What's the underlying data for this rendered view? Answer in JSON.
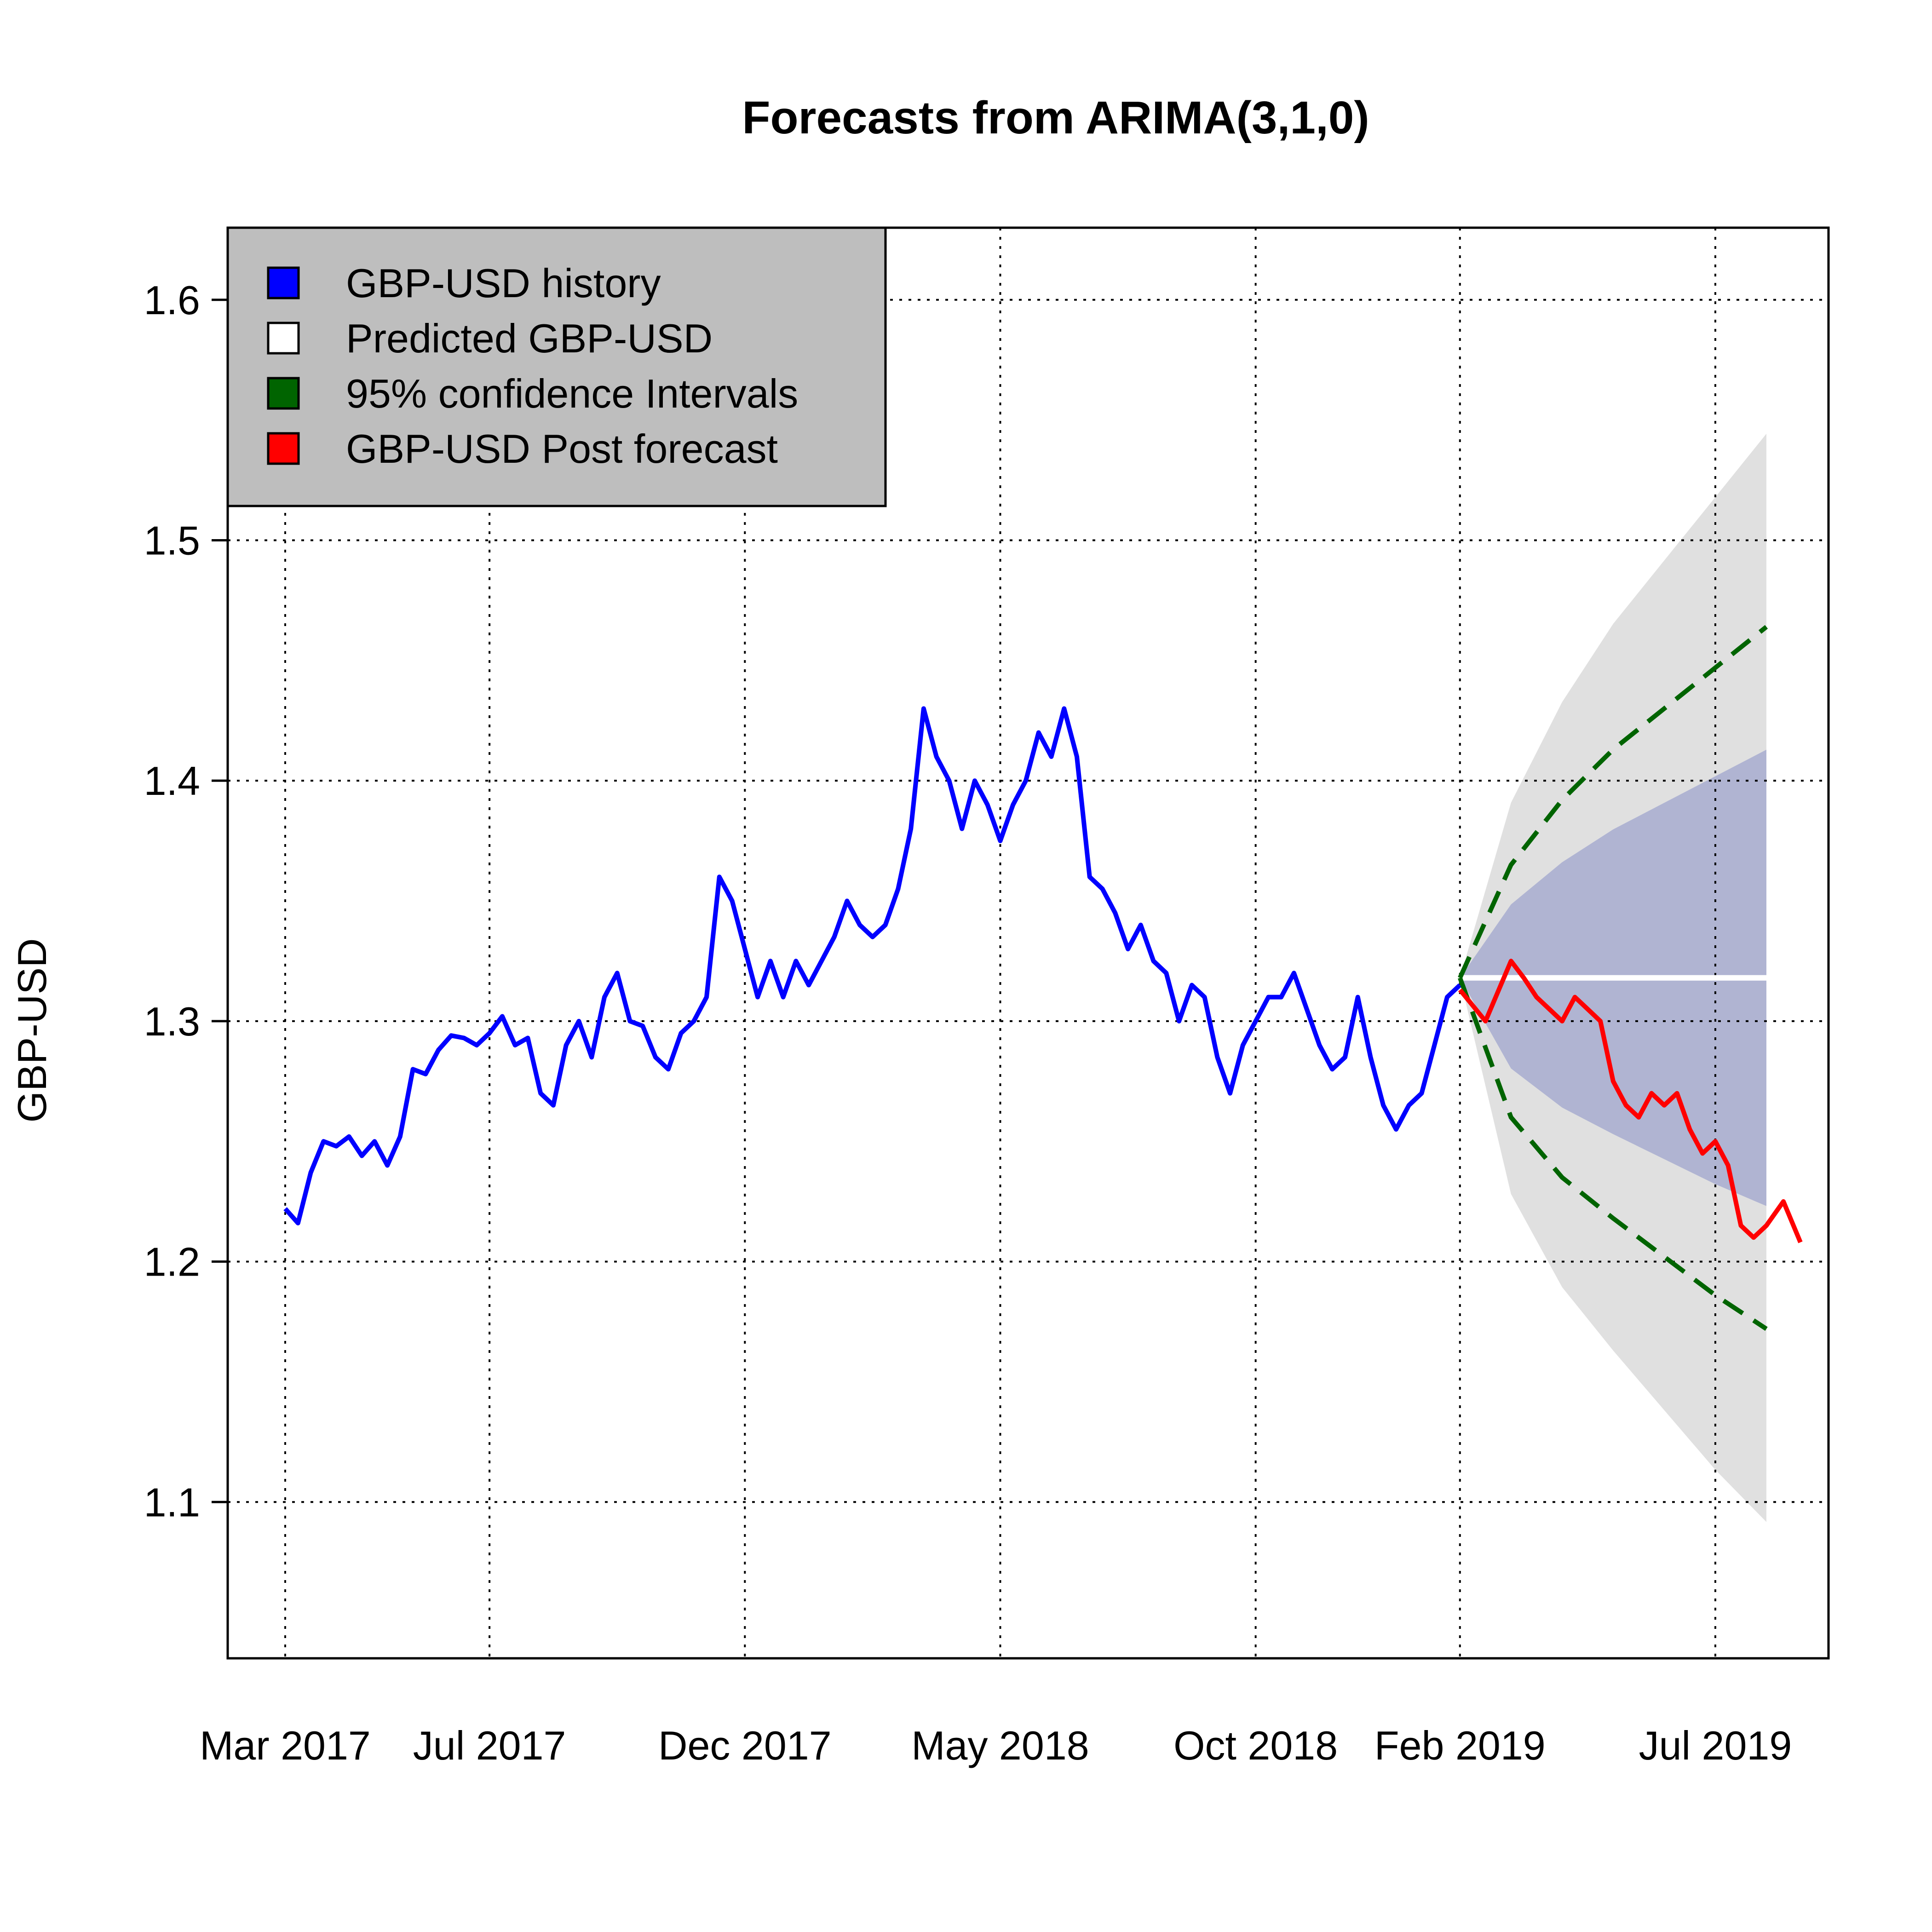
{
  "chart_data": {
    "type": "line",
    "title": "Forecasts from ARIMA(3,1,0)",
    "xlabel": "",
    "ylabel": "GBP-USD",
    "ylim": [
      1.035,
      1.63
    ],
    "y_ticks": [
      "1.1",
      "1.2",
      "1.3",
      "1.4",
      "1.5",
      "1.6"
    ],
    "x_ticks": [
      "Mar 2017",
      "Jul 2017",
      "Dec 2017",
      "May 2018",
      "Oct 2018",
      "Feb 2019",
      "Jul 2019"
    ],
    "grid": true,
    "legend_position": "top-left",
    "legend": [
      {
        "label": "GBP-USD  history",
        "color": "#0000ff"
      },
      {
        "label": "Predicted  GBP-USD",
        "color": "#ffffff"
      },
      {
        "label": "95% confidence Intervals",
        "color": "#006400"
      },
      {
        "label": "GBP-USD  Post forecast",
        "color": "#ff0000"
      }
    ],
    "series": [
      {
        "name": "GBP-USD  history",
        "color": "#0000ff",
        "x": [
          "Mar 2017",
          "Mar 2017",
          "Mar 2017",
          "Mar 2017",
          "Apr 2017",
          "Apr 2017",
          "Apr 2017",
          "Apr 2017",
          "May 2017",
          "May 2017",
          "May 2017",
          "May 2017",
          "Jun 2017",
          "Jun 2017",
          "Jun 2017",
          "Jun 2017",
          "Jul 2017",
          "Jul 2017",
          "Jul 2017",
          "Jul 2017",
          "Aug 2017",
          "Aug 2017",
          "Aug 2017",
          "Aug 2017",
          "Sep 2017",
          "Sep 2017",
          "Sep 2017",
          "Sep 2017",
          "Oct 2017",
          "Oct 2017",
          "Oct 2017",
          "Oct 2017",
          "Nov 2017",
          "Nov 2017",
          "Nov 2017",
          "Nov 2017",
          "Dec 2017",
          "Dec 2017",
          "Dec 2017",
          "Dec 2017",
          "Jan 2018",
          "Jan 2018",
          "Jan 2018",
          "Jan 2018",
          "Feb 2018",
          "Feb 2018",
          "Feb 2018",
          "Feb 2018",
          "Mar 2018",
          "Mar 2018",
          "Mar 2018",
          "Mar 2018",
          "Apr 2018",
          "Apr 2018",
          "Apr 2018",
          "Apr 2018",
          "May 2018",
          "May 2018",
          "May 2018",
          "May 2018",
          "Jun 2018",
          "Jun 2018",
          "Jun 2018",
          "Jun 2018",
          "Jul 2018",
          "Jul 2018",
          "Jul 2018",
          "Jul 2018",
          "Aug 2018",
          "Aug 2018",
          "Aug 2018",
          "Aug 2018",
          "Sep 2018",
          "Sep 2018",
          "Sep 2018",
          "Sep 2018",
          "Oct 2018",
          "Oct 2018",
          "Oct 2018",
          "Oct 2018",
          "Nov 2018",
          "Nov 2018",
          "Nov 2018",
          "Nov 2018",
          "Dec 2018",
          "Dec 2018",
          "Dec 2018",
          "Dec 2018",
          "Jan 2019",
          "Jan 2019",
          "Jan 2019",
          "Jan 2019",
          "Feb 2019"
        ],
        "values": [
          1.222,
          1.216,
          1.237,
          1.25,
          1.248,
          1.252,
          1.244,
          1.25,
          1.24,
          1.252,
          1.28,
          1.278,
          1.288,
          1.294,
          1.293,
          1.29,
          1.295,
          1.302,
          1.29,
          1.293,
          1.27,
          1.265,
          1.29,
          1.3,
          1.285,
          1.31,
          1.32,
          1.3,
          1.298,
          1.285,
          1.28,
          1.295,
          1.3,
          1.31,
          1.36,
          1.35,
          1.33,
          1.31,
          1.325,
          1.31,
          1.325,
          1.315,
          1.325,
          1.335,
          1.35,
          1.34,
          1.335,
          1.34,
          1.355,
          1.38,
          1.43,
          1.41,
          1.4,
          1.38,
          1.4,
          1.39,
          1.375,
          1.39,
          1.4,
          1.42,
          1.41,
          1.43,
          1.41,
          1.36,
          1.355,
          1.345,
          1.33,
          1.34,
          1.325,
          1.32,
          1.3,
          1.315,
          1.31,
          1.285,
          1.27,
          1.29,
          1.3,
          1.31,
          1.31,
          1.32,
          1.305,
          1.29,
          1.28,
          1.285,
          1.31,
          1.285,
          1.265,
          1.255,
          1.265,
          1.27,
          1.29,
          1.31,
          1.315
        ]
      },
      {
        "name": "Predicted  GBP-USD",
        "color": "#ffffff",
        "x": [
          "Feb 2019",
          "Aug 2019"
        ],
        "values": [
          1.318,
          1.318
        ]
      },
      {
        "name": "95% confidence Intervals",
        "color": "#006400",
        "x": [
          "Feb 2019",
          "Mar 2019",
          "Apr 2019",
          "May 2019",
          "Jun 2019",
          "Jul 2019",
          "Aug 2019"
        ],
        "upper": [
          1.318,
          1.365,
          1.392,
          1.413,
          1.43,
          1.447,
          1.464
        ],
        "lower": [
          1.318,
          1.26,
          1.235,
          1.218,
          1.202,
          1.186,
          1.172
        ]
      },
      {
        "name": "GBP-USD  Post forecast",
        "color": "#ff0000",
        "x": [
          "Feb 2019",
          "Feb 2019",
          "Mar 2019",
          "Mar 2019",
          "Mar 2019",
          "Mar 2019",
          "Apr 2019",
          "Apr 2019",
          "Apr 2019",
          "Apr 2019",
          "May 2019",
          "May 2019",
          "May 2019",
          "May 2019",
          "Jun 2019",
          "Jun 2019",
          "Jun 2019",
          "Jun 2019",
          "Jul 2019",
          "Jul 2019",
          "Jul 2019",
          "Jul 2019",
          "Aug 2019",
          "Aug 2019",
          "Aug 2019"
        ],
        "values": [
          1.313,
          1.3,
          1.325,
          1.318,
          1.31,
          1.305,
          1.3,
          1.31,
          1.305,
          1.3,
          1.275,
          1.265,
          1.26,
          1.27,
          1.265,
          1.27,
          1.255,
          1.245,
          1.25,
          1.24,
          1.215,
          1.21,
          1.215,
          1.225,
          1.208
        ]
      }
    ]
  }
}
